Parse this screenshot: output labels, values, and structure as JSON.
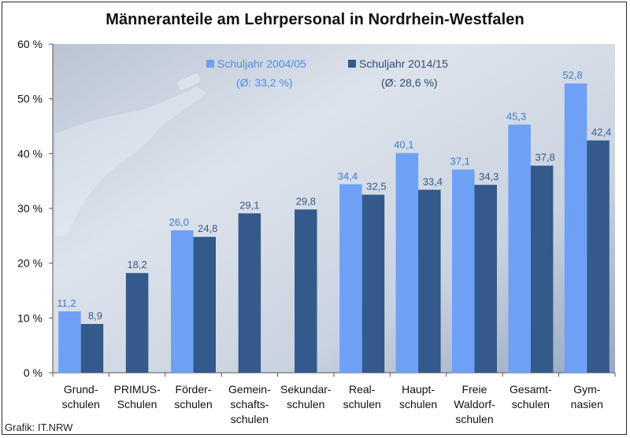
{
  "source": "Grafik: IT.NRW",
  "colors": {
    "series_a": "#6ea1f6",
    "series_b": "#345a8c",
    "plot_bg_light": "#eef1f6",
    "plot_bg_dark": "#8c9db6",
    "label_a": "#3c7fd6",
    "label_b": "#3b5a85"
  },
  "chart_data": {
    "type": "bar",
    "title": "Männeranteile am Lehrpersonal in Nordrhein-Westfalen",
    "ylim": [
      0,
      60
    ],
    "yticks": [
      0,
      10,
      20,
      30,
      40,
      50,
      60
    ],
    "ytick_labels": [
      "0 %",
      "10 %",
      "20 %",
      "30 %",
      "40 %",
      "50 %",
      "60 %"
    ],
    "grid": false,
    "legend_position": "top-center",
    "categories": [
      [
        "Grund-",
        "schulen"
      ],
      [
        "PRIMUS-",
        "Schulen"
      ],
      [
        "Förder-",
        "schulen"
      ],
      [
        "Gemein-",
        "schafts-",
        "schulen"
      ],
      [
        "Sekundar-",
        "schulen"
      ],
      [
        "Real-",
        "schulen"
      ],
      [
        "Haupt-",
        "schulen"
      ],
      [
        "Freie",
        "Waldorf-",
        "schulen"
      ],
      [
        "Gesamt-",
        "schulen"
      ],
      [
        "Gym-",
        "nasien"
      ]
    ],
    "series": [
      {
        "name": "Schuljahr 2004/05",
        "note": "(Ø: 33,2 %)",
        "values": [
          11.2,
          null,
          26.0,
          null,
          null,
          34.4,
          40.1,
          37.1,
          45.3,
          52.8
        ],
        "labels": [
          "11,2",
          "",
          "26,0",
          "",
          "",
          "34,4",
          "40,1",
          "37,1",
          "45,3",
          "52,8"
        ]
      },
      {
        "name": "Schuljahr 2014/15",
        "note": "(Ø: 28,6 %)",
        "values": [
          8.9,
          18.2,
          24.8,
          29.1,
          29.8,
          32.5,
          33.4,
          34.3,
          37.8,
          42.4
        ],
        "labels": [
          "8,9",
          "18,2",
          "24,8",
          "29,1",
          "29,8",
          "32,5",
          "33,4",
          "34,3",
          "37,8",
          "42,4"
        ]
      }
    ]
  }
}
